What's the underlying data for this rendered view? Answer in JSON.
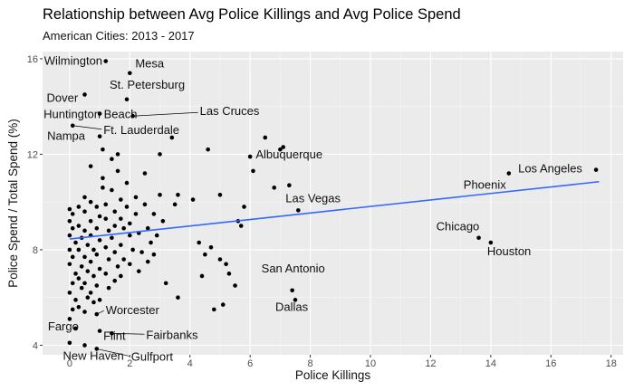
{
  "chart_data": {
    "type": "scatter",
    "title": "Relationship between Avg Police Killings and Avg Police Spend",
    "subtitle": "American Cities: 2013 - 2017",
    "xlabel": "Police Killings",
    "ylabel": "Police Spend / Total Spend (%)",
    "xlim": [
      -0.9,
      18.4
    ],
    "ylim": [
      3.6,
      16.3
    ],
    "x_ticks": [
      0,
      2,
      4,
      6,
      8,
      10,
      12,
      14,
      16,
      18
    ],
    "y_ticks": [
      4,
      8,
      12,
      16
    ],
    "grid": true,
    "background": "#EBEBEB",
    "point_color": "#000000",
    "trend_color": "#3366FF",
    "trend_line": {
      "x": [
        0,
        17.6
      ],
      "y": [
        8.45,
        10.85
      ]
    },
    "labeled_points": [
      {
        "label": "Wilmington",
        "x": 1.2,
        "y": 15.9
      },
      {
        "label": "Mesa",
        "x": 2.0,
        "y": 15.4
      },
      {
        "label": "Dover",
        "x": 0.5,
        "y": 14.5
      },
      {
        "label": "St. Petersburg",
        "x": 1.9,
        "y": 14.3
      },
      {
        "label": "Huntington Beach",
        "x": 1.0,
        "y": 13.7
      },
      {
        "label": "Las Cruces",
        "x": 2.1,
        "y": 13.6
      },
      {
        "label": "Ft. Lauderdale",
        "x": 0.1,
        "y": 13.2
      },
      {
        "label": "Nampa",
        "x": 1.0,
        "y": 12.75
      },
      {
        "label": "Albuquerque",
        "x": 7.0,
        "y": 12.2
      },
      {
        "label": "Los Angeles",
        "x": 17.5,
        "y": 11.35
      },
      {
        "label": "Phoenix",
        "x": 14.6,
        "y": 11.2
      },
      {
        "label": "Las Vegas",
        "x": 7.6,
        "y": 9.65
      },
      {
        "label": "Chicago",
        "x": 13.6,
        "y": 8.5
      },
      {
        "label": "Houston",
        "x": 14.0,
        "y": 8.3
      },
      {
        "label": "San Antonio",
        "x": 7.4,
        "y": 6.3
      },
      {
        "label": "Dallas",
        "x": 7.5,
        "y": 5.9
      },
      {
        "label": "Worcester",
        "x": 0.9,
        "y": 5.3
      },
      {
        "label": "Fargo",
        "x": 0.0,
        "y": 4.1
      },
      {
        "label": "Flint",
        "x": 1.0,
        "y": 4.6
      },
      {
        "label": "Fairbanks",
        "x": 1.4,
        "y": 4.5
      },
      {
        "label": "New Haven",
        "x": 0.5,
        "y": 4.0
      },
      {
        "label": "Gulfport",
        "x": 0.9,
        "y": 3.85
      }
    ],
    "other_points": [
      [
        0.0,
        9.7
      ],
      [
        0.1,
        9.5
      ],
      [
        0.0,
        9.2
      ],
      [
        0.1,
        8.9
      ],
      [
        0.0,
        8.6
      ],
      [
        0.2,
        8.3
      ],
      [
        0.0,
        8.0
      ],
      [
        0.1,
        7.7
      ],
      [
        0.0,
        7.4
      ],
      [
        0.2,
        7.0
      ],
      [
        0.1,
        6.6
      ],
      [
        0.0,
        6.2
      ],
      [
        0.2,
        5.9
      ],
      [
        0.1,
        5.5
      ],
      [
        0.0,
        5.1
      ],
      [
        0.2,
        4.7
      ],
      [
        0.3,
        9.8
      ],
      [
        0.3,
        9.0
      ],
      [
        0.4,
        8.5
      ],
      [
        0.3,
        8.0
      ],
      [
        0.4,
        7.3
      ],
      [
        0.3,
        6.8
      ],
      [
        0.4,
        6.4
      ],
      [
        0.3,
        5.6
      ],
      [
        0.5,
        10.2
      ],
      [
        0.5,
        9.6
      ],
      [
        0.5,
        8.8
      ],
      [
        0.6,
        8.2
      ],
      [
        0.5,
        7.7
      ],
      [
        0.6,
        7.1
      ],
      [
        0.5,
        6.6
      ],
      [
        0.6,
        6.0
      ],
      [
        0.5,
        5.4
      ],
      [
        0.7,
        10.0
      ],
      [
        0.7,
        9.2
      ],
      [
        0.7,
        8.6
      ],
      [
        0.8,
        8.0
      ],
      [
        0.7,
        7.5
      ],
      [
        0.8,
        6.9
      ],
      [
        0.7,
        6.2
      ],
      [
        0.8,
        5.8
      ],
      [
        0.7,
        11.5
      ],
      [
        0.9,
        9.8
      ],
      [
        1.0,
        9.4
      ],
      [
        0.9,
        8.9
      ],
      [
        1.0,
        8.4
      ],
      [
        0.9,
        7.8
      ],
      [
        1.0,
        7.2
      ],
      [
        0.9,
        6.5
      ],
      [
        1.0,
        5.9
      ],
      [
        1.1,
        10.6
      ],
      [
        1.1,
        11.0
      ],
      [
        1.2,
        9.9
      ],
      [
        1.2,
        9.3
      ],
      [
        1.3,
        8.8
      ],
      [
        1.2,
        8.1
      ],
      [
        1.3,
        7.6
      ],
      [
        1.2,
        7.0
      ],
      [
        1.3,
        6.4
      ],
      [
        1.1,
        12.2
      ],
      [
        1.4,
        11.8
      ],
      [
        1.4,
        10.5
      ],
      [
        1.5,
        9.6
      ],
      [
        1.5,
        9.0
      ],
      [
        1.4,
        8.5
      ],
      [
        1.5,
        7.9
      ],
      [
        1.6,
        7.3
      ],
      [
        1.5,
        6.7
      ],
      [
        1.6,
        12.0
      ],
      [
        1.6,
        11.3
      ],
      [
        1.7,
        10.1
      ],
      [
        1.7,
        9.3
      ],
      [
        1.8,
        8.9
      ],
      [
        1.7,
        8.2
      ],
      [
        1.8,
        7.6
      ],
      [
        1.7,
        6.9
      ],
      [
        1.9,
        10.8
      ],
      [
        1.9,
        9.8
      ],
      [
        2.0,
        9.1
      ],
      [
        2.0,
        8.6
      ],
      [
        2.1,
        8.0
      ],
      [
        2.0,
        7.4
      ],
      [
        2.2,
        10.2
      ],
      [
        2.2,
        9.5
      ],
      [
        2.3,
        8.7
      ],
      [
        2.4,
        7.9
      ],
      [
        2.3,
        7.1
      ],
      [
        2.5,
        11.2
      ],
      [
        2.5,
        9.9
      ],
      [
        2.6,
        8.9
      ],
      [
        2.7,
        8.3
      ],
      [
        2.6,
        7.5
      ],
      [
        2.8,
        9.5
      ],
      [
        2.9,
        8.6
      ],
      [
        2.8,
        7.8
      ],
      [
        3.0,
        12.0
      ],
      [
        3.0,
        10.3
      ],
      [
        3.1,
        9.2
      ],
      [
        3.2,
        6.6
      ],
      [
        3.4,
        12.7
      ],
      [
        3.5,
        9.9
      ],
      [
        3.6,
        6.0
      ],
      [
        3.6,
        10.3
      ],
      [
        4.1,
        10.1
      ],
      [
        4.3,
        8.3
      ],
      [
        4.4,
        6.9
      ],
      [
        4.5,
        7.8
      ],
      [
        4.6,
        12.2
      ],
      [
        4.7,
        8.1
      ],
      [
        4.8,
        5.5
      ],
      [
        5.0,
        7.6
      ],
      [
        5.0,
        10.3
      ],
      [
        5.1,
        5.7
      ],
      [
        5.2,
        7.4
      ],
      [
        5.3,
        7.0
      ],
      [
        5.5,
        6.5
      ],
      [
        5.6,
        9.2
      ],
      [
        5.7,
        9.0
      ],
      [
        5.8,
        9.8
      ],
      [
        6.0,
        11.9
      ],
      [
        6.1,
        11.3
      ],
      [
        6.5,
        12.7
      ],
      [
        6.8,
        10.6
      ],
      [
        7.1,
        12.3
      ],
      [
        7.3,
        10.7
      ]
    ]
  }
}
